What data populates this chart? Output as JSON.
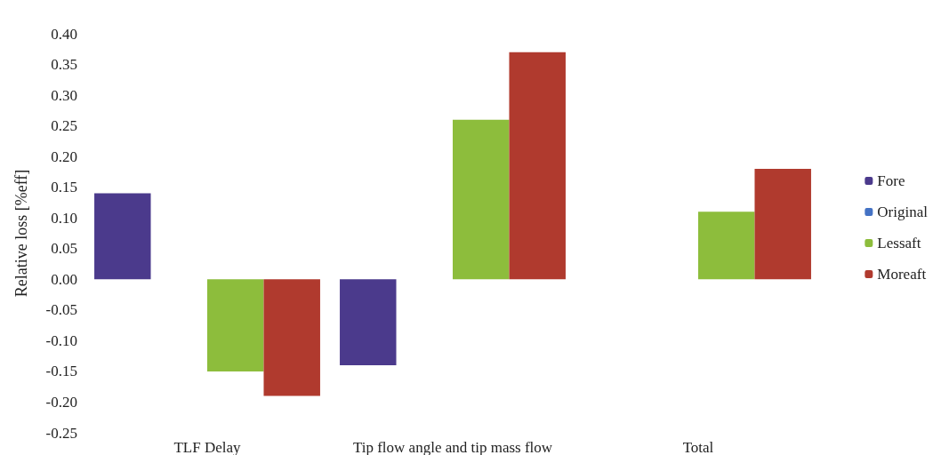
{
  "chart_data": {
    "type": "bar",
    "ylabel": "Relative loss [%eff]",
    "categories": [
      "TLF Delay",
      "Tip flow angle and tip mass flow",
      "Total"
    ],
    "series": [
      {
        "name": "Fore",
        "color": "#4b3a8c",
        "values": [
          0.14,
          -0.14,
          0
        ]
      },
      {
        "name": "Original",
        "color": "#4472c4",
        "values": [
          0,
          0,
          0
        ]
      },
      {
        "name": "Lessaft",
        "color": "#8dbd3c",
        "values": [
          -0.15,
          0.26,
          0.11
        ]
      },
      {
        "name": "Moreaft",
        "color": "#b03a2e",
        "values": [
          -0.19,
          0.37,
          0.18
        ]
      }
    ],
    "ylim": [
      -0.25,
      0.4
    ],
    "yticks": [
      -0.25,
      {
        "value": -0.2,
        "label": "-0.20"
      },
      -0.15,
      {
        "value": -0.1,
        "label": "-0.10"
      },
      -0.05,
      {
        "value": 0,
        "label": "0.00"
      },
      0.05,
      {
        "value": 0.1,
        "label": "0.10"
      },
      0.15,
      {
        "value": 0.2,
        "label": "0.20"
      },
      0.25,
      {
        "value": 0.3,
        "label": "0.30"
      },
      0.35,
      {
        "value": 0.4,
        "label": "0.40"
      }
    ],
    "grid": false,
    "legend": "right"
  }
}
